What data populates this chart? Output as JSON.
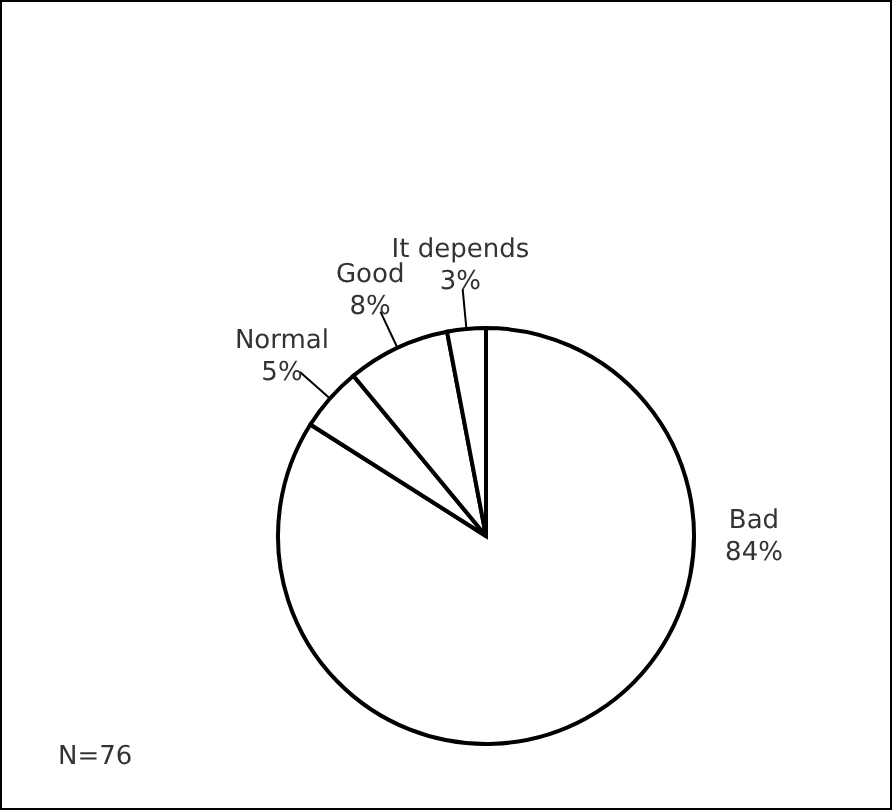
{
  "chart_data": {
    "type": "pie",
    "categories": [
      "Bad",
      "Normal",
      "Good",
      "It depends"
    ],
    "values": [
      84,
      5,
      8,
      3
    ],
    "value_labels": [
      "84%",
      "5%",
      "8%",
      "3%"
    ],
    "colors": [
      "#ffffff",
      "#ffffff",
      "#ffffff",
      "#ffffff"
    ],
    "annotations": [
      "N=76"
    ]
  }
}
